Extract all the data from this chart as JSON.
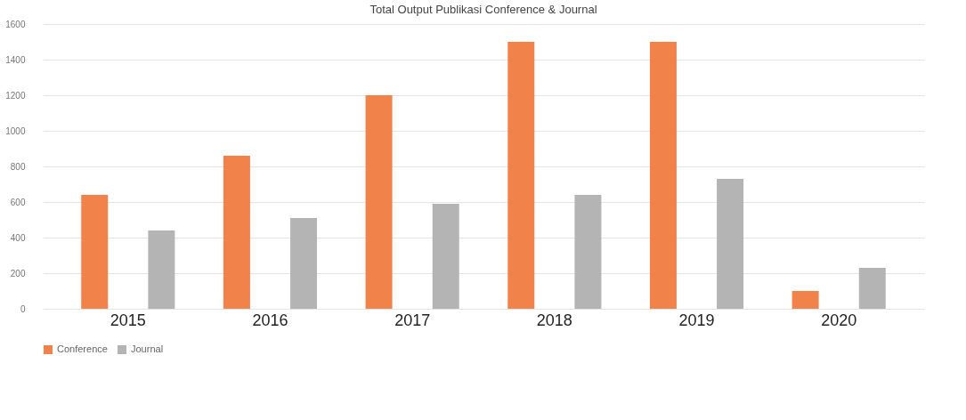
{
  "chart_data": {
    "type": "bar",
    "title": "Total Output Publikasi Conference & Journal",
    "categories": [
      "2015",
      "2016",
      "2017",
      "2018",
      "2019",
      "2020"
    ],
    "series": [
      {
        "name": "Conference",
        "color": "#f0824a",
        "values": [
          640,
          860,
          1200,
          1500,
          1500,
          100
        ]
      },
      {
        "name": "Journal",
        "color": "#b4b4b4",
        "values": [
          440,
          510,
          590,
          640,
          730,
          230
        ]
      }
    ],
    "ylim": [
      0,
      1600
    ],
    "yticks": [
      0,
      200,
      400,
      600,
      800,
      1000,
      1200,
      1400,
      1600
    ],
    "grid": "y",
    "legend": "bottom"
  }
}
